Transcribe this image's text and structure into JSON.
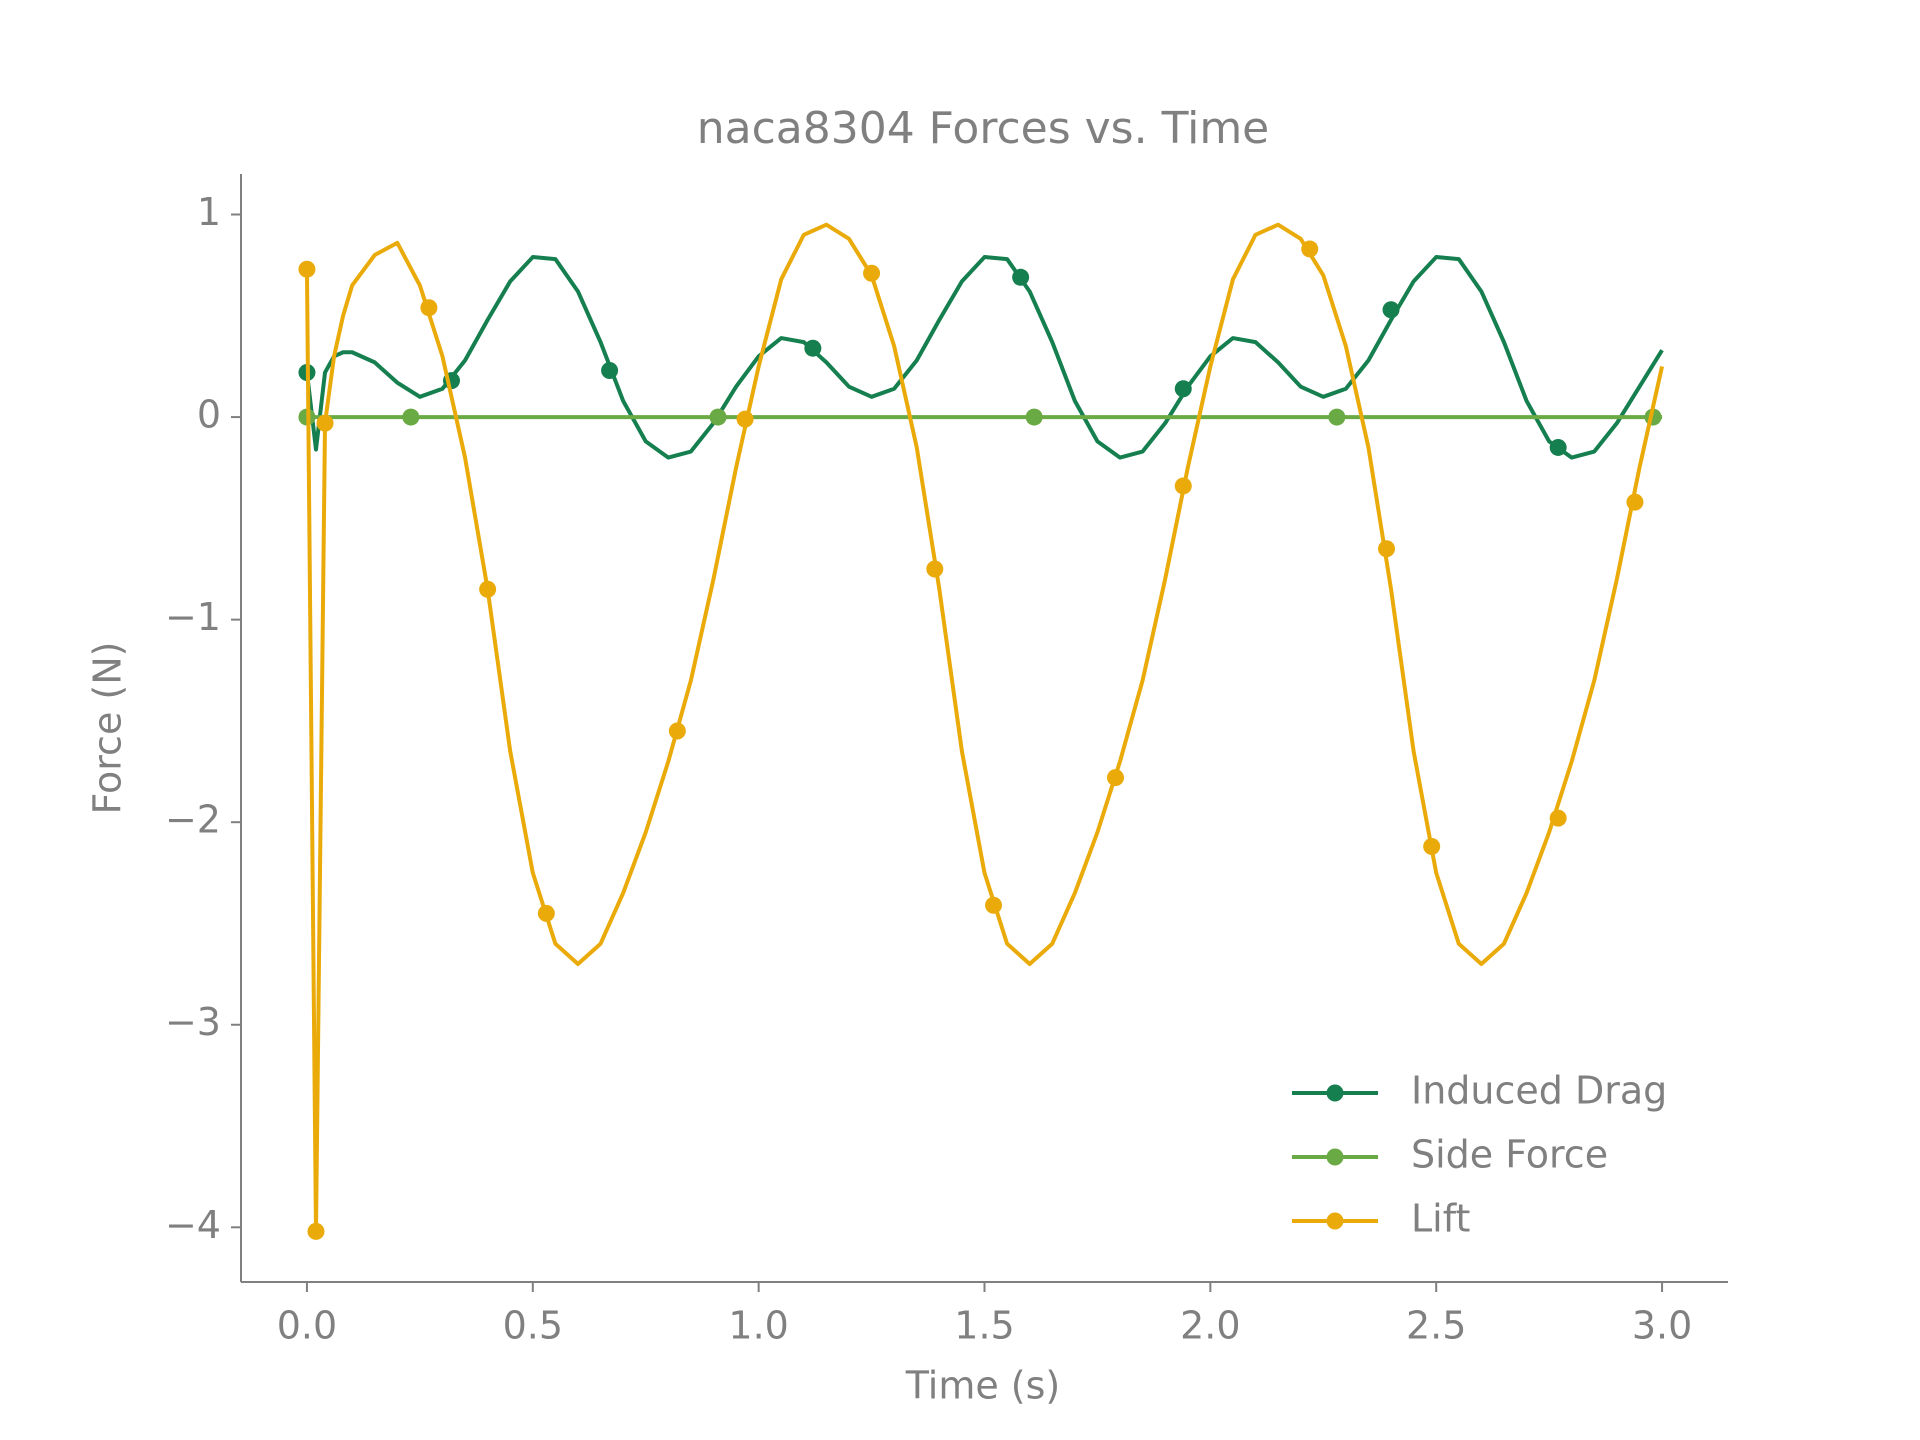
{
  "chart_data": {
    "type": "line",
    "title": "naca8304 Forces vs. Time",
    "xlabel": "Time (s)",
    "ylabel": "Force (N)",
    "xlim": [
      -0.146,
      3.146
    ],
    "ylim": [
      -4.27,
      1.2
    ],
    "xticks": [
      {
        "value": 0,
        "label": "0.0"
      },
      0.5,
      {
        "value": 1,
        "label": "1.0"
      },
      1.5,
      {
        "value": 2,
        "label": "2.0"
      },
      2.5,
      {
        "value": 3,
        "label": "3.0"
      }
    ],
    "yticks": [
      {
        "value": -4,
        "label": "−4"
      },
      {
        "value": -3,
        "label": "−3"
      },
      {
        "value": -2,
        "label": "−2"
      },
      {
        "value": -1,
        "label": "−1"
      },
      0,
      1
    ],
    "legend": "lower right",
    "series": [
      {
        "name": "Induced Drag",
        "color": "#157f4f",
        "x": [
          0,
          0.02,
          0.04,
          0.06,
          0.08,
          0.1,
          0.15,
          0.2,
          0.25,
          0.3,
          0.35,
          0.4,
          0.45,
          0.5,
          0.55,
          0.6,
          0.65,
          0.7,
          0.75,
          0.8,
          0.85,
          0.9,
          0.95,
          1.0,
          1.05,
          1.1,
          1.15,
          1.2,
          1.25,
          1.3,
          1.35,
          1.4,
          1.45,
          1.5,
          1.55,
          1.6,
          1.65,
          1.7,
          1.75,
          1.8,
          1.85,
          1.9,
          1.95,
          2.0,
          2.05,
          2.1,
          2.15,
          2.2,
          2.25,
          2.3,
          2.35,
          2.4,
          2.45,
          2.5,
          2.55,
          2.6,
          2.65,
          2.7,
          2.75,
          2.8,
          2.85,
          2.9,
          2.95,
          3.0
        ],
        "values": [
          0.22,
          -0.16,
          0.22,
          0.3,
          0.32,
          0.32,
          0.27,
          0.17,
          0.1,
          0.14,
          0.28,
          0.48,
          0.67,
          0.79,
          0.78,
          0.62,
          0.37,
          0.08,
          -0.12,
          -0.2,
          -0.17,
          -0.03,
          0.15,
          0.3,
          0.39,
          0.37,
          0.27,
          0.15,
          0.1,
          0.14,
          0.28,
          0.48,
          0.67,
          0.79,
          0.78,
          0.62,
          0.37,
          0.08,
          -0.12,
          -0.2,
          -0.17,
          -0.03,
          0.15,
          0.3,
          0.39,
          0.37,
          0.27,
          0.15,
          0.1,
          0.14,
          0.28,
          0.48,
          0.67,
          0.79,
          0.78,
          0.62,
          0.37,
          0.08,
          -0.12,
          -0.2,
          -0.17,
          -0.03,
          0.15,
          0.33
        ],
        "marker_x": [
          0,
          0.32,
          0.67,
          1.12,
          1.58,
          1.94,
          2.4,
          2.77
        ],
        "marker_values": [
          0.22,
          0.18,
          0.23,
          0.34,
          0.69,
          0.14,
          0.53,
          -0.15
        ]
      },
      {
        "name": "Side Force",
        "color": "#6aaa44",
        "x": [
          0,
          3.0
        ],
        "values": [
          0,
          0
        ],
        "marker_x": [
          0,
          0.23,
          0.91,
          1.61,
          2.28,
          2.98
        ],
        "marker_values": [
          0,
          0,
          0,
          0,
          0,
          0
        ]
      },
      {
        "name": "Lift",
        "color": "#eaab0a",
        "x": [
          0,
          0.02,
          0.04,
          0.06,
          0.08,
          0.1,
          0.15,
          0.2,
          0.25,
          0.3,
          0.35,
          0.4,
          0.45,
          0.5,
          0.55,
          0.6,
          0.65,
          0.7,
          0.75,
          0.8,
          0.85,
          0.9,
          0.95,
          1.0,
          1.05,
          1.1,
          1.15,
          1.2,
          1.25,
          1.3,
          1.35,
          1.4,
          1.45,
          1.5,
          1.55,
          1.6,
          1.65,
          1.7,
          1.75,
          1.8,
          1.85,
          1.9,
          1.95,
          2.0,
          2.05,
          2.1,
          2.15,
          2.2,
          2.25,
          2.3,
          2.35,
          2.4,
          2.45,
          2.5,
          2.55,
          2.6,
          2.65,
          2.7,
          2.75,
          2.8,
          2.85,
          2.9,
          2.95,
          3.0
        ],
        "values": [
          0.73,
          -4.02,
          -0.03,
          0.3,
          0.5,
          0.65,
          0.8,
          0.86,
          0.65,
          0.3,
          -0.2,
          -0.85,
          -1.65,
          -2.25,
          -2.6,
          -2.7,
          -2.6,
          -2.35,
          -2.05,
          -1.7,
          -1.3,
          -0.8,
          -0.25,
          0.25,
          0.68,
          0.9,
          0.95,
          0.88,
          0.7,
          0.35,
          -0.15,
          -0.85,
          -1.65,
          -2.25,
          -2.6,
          -2.7,
          -2.6,
          -2.35,
          -2.05,
          -1.7,
          -1.3,
          -0.8,
          -0.25,
          0.25,
          0.68,
          0.9,
          0.95,
          0.88,
          0.7,
          0.35,
          -0.15,
          -0.85,
          -1.65,
          -2.25,
          -2.6,
          -2.7,
          -2.6,
          -2.35,
          -2.05,
          -1.7,
          -1.3,
          -0.8,
          -0.25,
          0.25
        ],
        "marker_x": [
          0,
          0.02,
          0.04,
          0.27,
          0.4,
          0.53,
          0.82,
          0.97,
          1.25,
          1.39,
          1.52,
          1.79,
          1.94,
          2.22,
          2.39,
          2.49,
          2.77,
          2.94
        ],
        "marker_values": [
          0.73,
          -4.02,
          -0.03,
          0.54,
          -0.85,
          -2.45,
          -1.55,
          -0.01,
          0.71,
          -0.75,
          -2.41,
          -1.78,
          -0.34,
          0.83,
          -0.65,
          -2.12,
          -1.98,
          -0.42
        ]
      }
    ]
  }
}
